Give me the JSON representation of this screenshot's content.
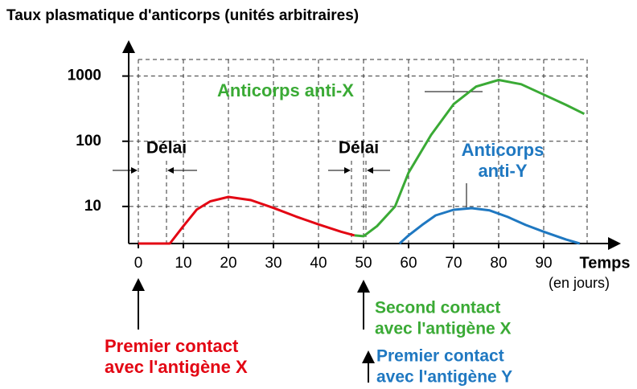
{
  "chart_data": {
    "type": "line",
    "title": "Taux plasmatique d'anticorps (unités arbitraires)",
    "x_label": "Temps",
    "x_unit": "(en jours)",
    "yscale": "log",
    "xlim": [
      -2,
      107
    ],
    "ylim": [
      2.7,
      1900
    ],
    "xticks": [
      0,
      10,
      20,
      30,
      40,
      50,
      60,
      70,
      80,
      90
    ],
    "yticks": [
      10,
      100,
      1000
    ],
    "grid": true,
    "series": [
      {
        "color": "#e30613",
        "x": [
          0,
          7,
          10,
          13,
          16,
          20,
          25,
          30,
          35,
          40,
          45,
          48
        ],
        "values": [
          2.7,
          2.7,
          5,
          9,
          12,
          14,
          12.5,
          9.5,
          7,
          5.3,
          4.1,
          3.6
        ]
      },
      {
        "name": "Anticorps anti-X",
        "color": "#3aaa35",
        "x": [
          48,
          50,
          53,
          57,
          60,
          65,
          70,
          75,
          80,
          85,
          90,
          95,
          99
        ],
        "values": [
          3.6,
          3.5,
          5,
          10,
          33,
          125,
          370,
          690,
          870,
          750,
          520,
          360,
          263
        ]
      },
      {
        "name": "Anticorps anti-Y",
        "color": "#1f78c1",
        "x": [
          58,
          60,
          63,
          66,
          70,
          74,
          78,
          82,
          86,
          90,
          95,
          98
        ],
        "values": [
          2.7,
          3.6,
          5.2,
          7.3,
          8.9,
          9.4,
          8.7,
          6.9,
          5.2,
          4.1,
          3.1,
          2.7
        ]
      }
    ],
    "annotations": [
      {
        "lines": [
          "Délai"
        ]
      },
      {
        "lines": [
          "Délai"
        ]
      },
      {
        "lines": [
          "Premier contact",
          "avec l'antigène X"
        ]
      },
      {
        "lines": [
          "Second contact",
          "avec l'antigène X"
        ]
      },
      {
        "lines": [
          "Premier contact",
          "avec l'antigène Y"
        ]
      }
    ]
  }
}
